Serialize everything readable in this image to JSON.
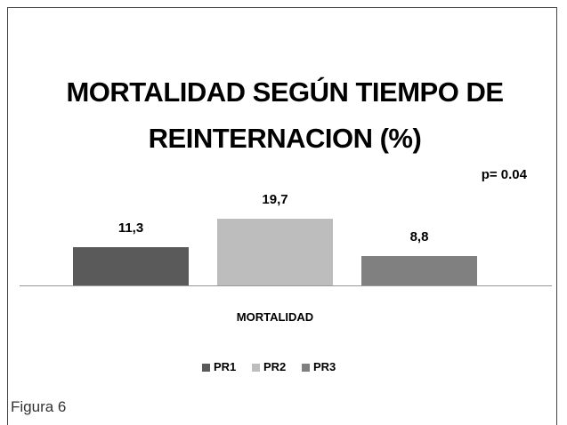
{
  "chart_data": {
    "type": "bar",
    "title": "MORTALIDAD SEGÚN TIEMPO DE REINTERNACION (%)",
    "annotation": "p= 0.04",
    "categories": [
      "MORTALIDAD"
    ],
    "series": [
      {
        "name": "PR1",
        "color": "#5a5a5a",
        "values": [
          11.3
        ],
        "value_labels": [
          "11,3"
        ]
      },
      {
        "name": "PR2",
        "color": "#bdbdbd",
        "values": [
          19.7
        ],
        "value_labels": [
          "19,7"
        ]
      },
      {
        "name": "PR3",
        "color": "#808080",
        "values": [
          8.8
        ],
        "value_labels": [
          "8,8"
        ]
      }
    ],
    "legend": "bottom"
  },
  "caption": "Figura 6"
}
